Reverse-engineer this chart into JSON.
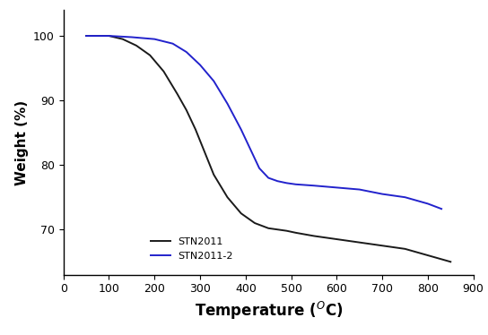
{
  "title": "",
  "xlabel": "Temperature ($^O$C)",
  "ylabel": "Weight (%)",
  "xlim": [
    0,
    900
  ],
  "ylim": [
    63,
    104
  ],
  "xticks": [
    0,
    100,
    200,
    300,
    400,
    500,
    600,
    700,
    800,
    900
  ],
  "yticks": [
    70,
    80,
    90,
    100
  ],
  "legend_labels": [
    "STN2011",
    "STN2011-2"
  ],
  "stn2011_x": [
    50,
    100,
    130,
    160,
    190,
    220,
    250,
    270,
    290,
    310,
    330,
    360,
    390,
    420,
    450,
    470,
    490,
    510,
    550,
    600,
    650,
    700,
    750,
    800,
    850
  ],
  "stn2011_y": [
    100.0,
    100.0,
    99.5,
    98.5,
    97.0,
    94.5,
    91.0,
    88.5,
    85.5,
    82.0,
    78.5,
    75.0,
    72.5,
    71.0,
    70.2,
    70.0,
    69.8,
    69.5,
    69.0,
    68.5,
    68.0,
    67.5,
    67.0,
    66.0,
    65.0
  ],
  "stn2011_2_x": [
    50,
    100,
    150,
    200,
    240,
    270,
    300,
    330,
    360,
    390,
    410,
    430,
    450,
    470,
    490,
    510,
    550,
    600,
    650,
    700,
    750,
    800,
    830
  ],
  "stn2011_2_y": [
    100.0,
    100.0,
    99.8,
    99.5,
    98.8,
    97.5,
    95.5,
    93.0,
    89.5,
    85.5,
    82.5,
    79.5,
    78.0,
    77.5,
    77.2,
    77.0,
    76.8,
    76.5,
    76.2,
    75.5,
    75.0,
    74.0,
    73.2
  ],
  "bg_color": "#ffffff",
  "line1_color": "#1a1a1a",
  "line2_color": "#2222cc",
  "line_width": 1.4,
  "xlabel_fontsize": 12,
  "ylabel_fontsize": 11,
  "tick_fontsize": 9,
  "legend_fontsize": 8
}
